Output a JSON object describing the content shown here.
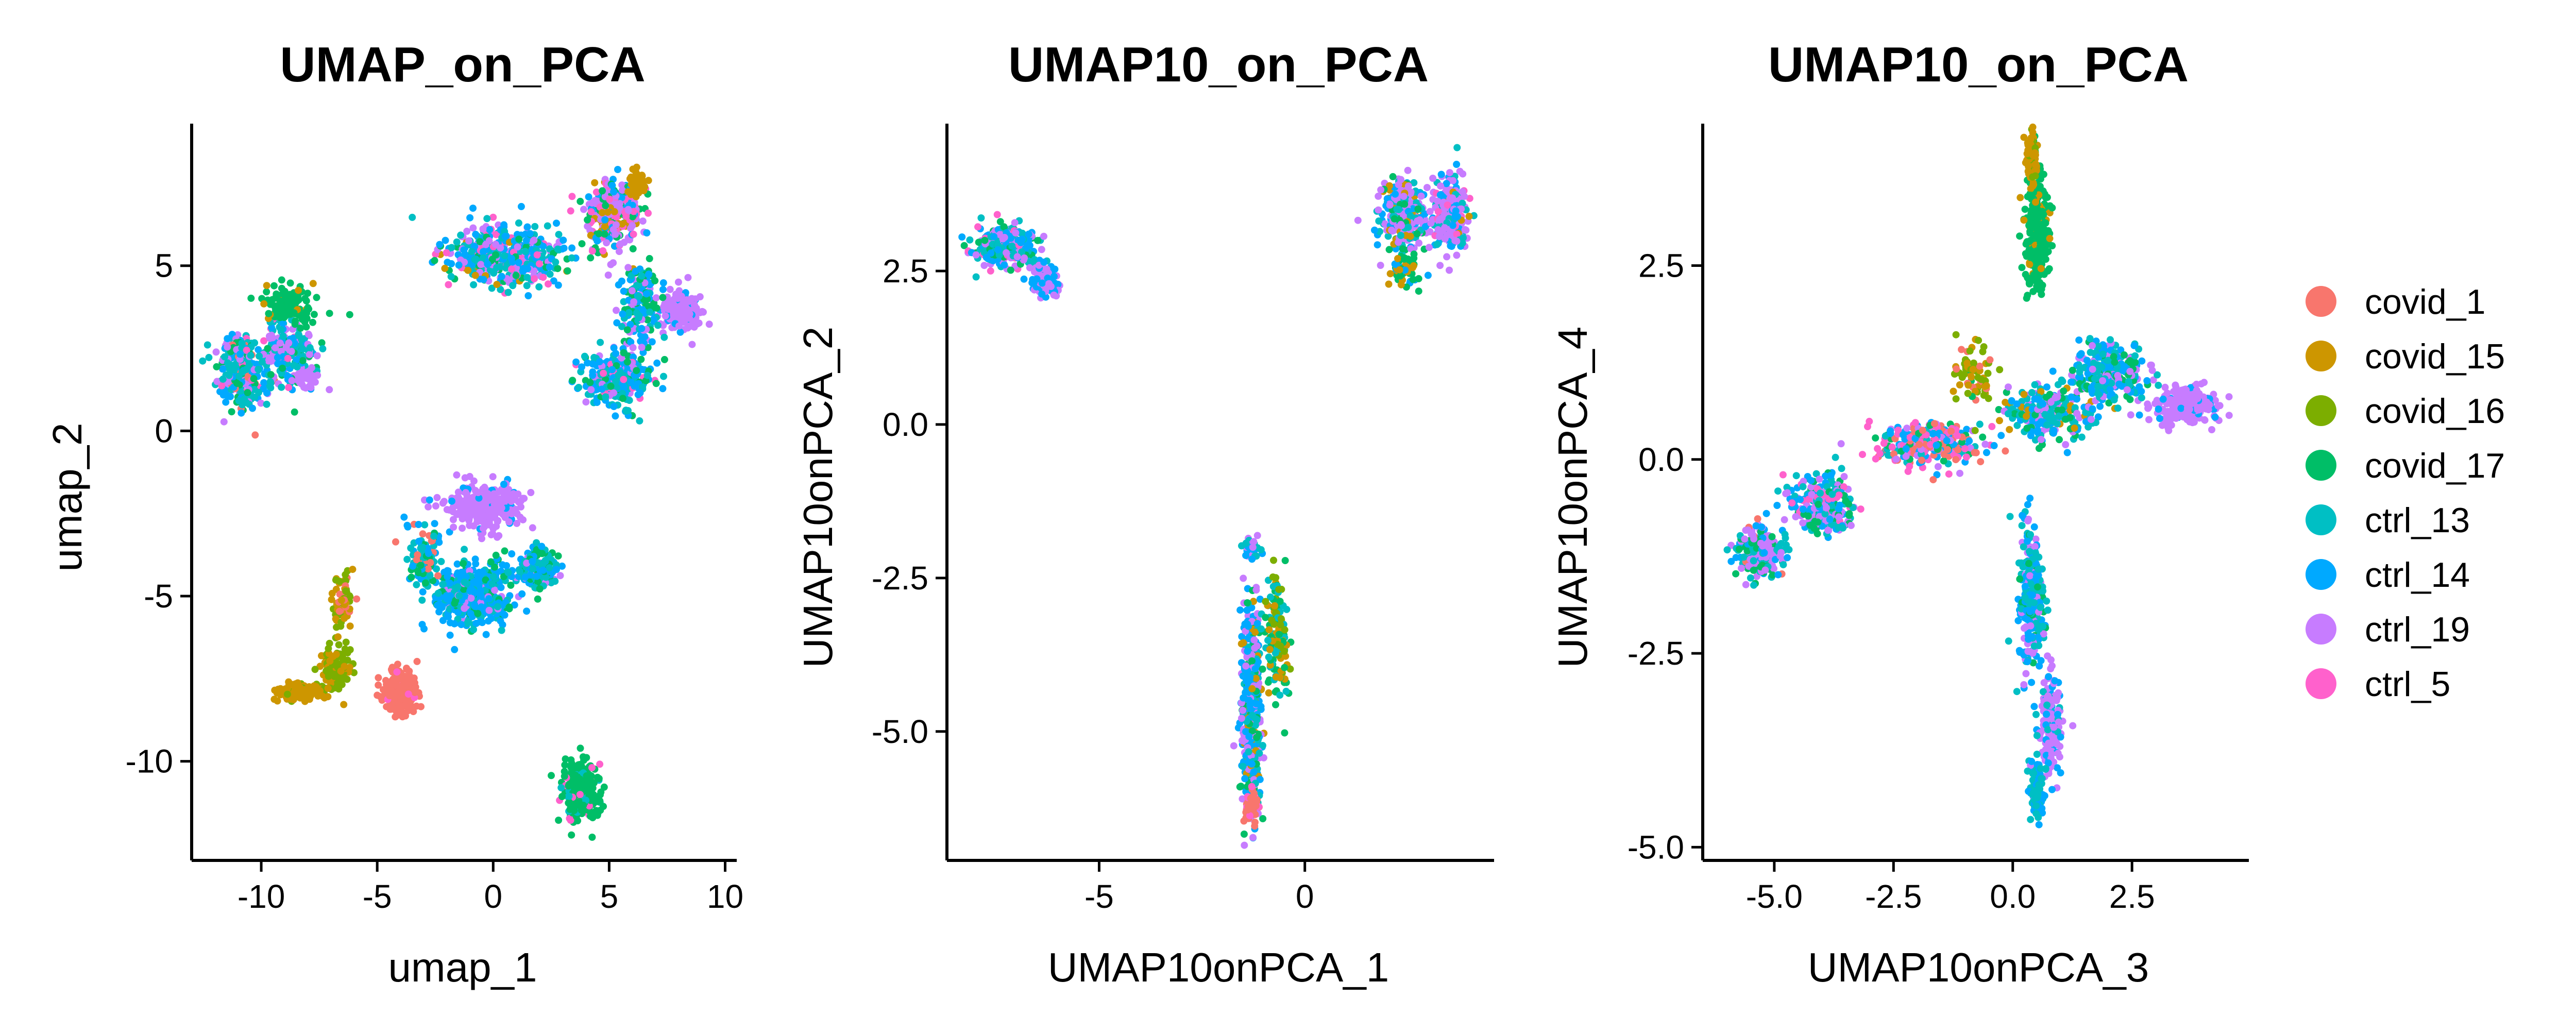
{
  "legend": {
    "items": [
      "covid_1",
      "covid_15",
      "covid_16",
      "covid_17",
      "ctrl_13",
      "ctrl_14",
      "ctrl_19",
      "ctrl_5"
    ],
    "colors": [
      "#F8766D",
      "#CD9600",
      "#7CAE00",
      "#00BE67",
      "#00BFC4",
      "#00A9FF",
      "#C77CFF",
      "#FF61CC"
    ]
  },
  "chart_data": [
    {
      "type": "scatter",
      "title": "UMAP_on_PCA",
      "xlabel": "umap_1",
      "ylabel": "umap_2",
      "xlim": [
        -13,
        10.5
      ],
      "ylim": [
        -13,
        9.3
      ],
      "xticks": [
        -10,
        -5,
        0,
        5,
        10
      ],
      "yticks": [
        -10,
        -5,
        0,
        5
      ],
      "xtick_labels": [
        "-10",
        "-5",
        "0",
        "5",
        "10"
      ],
      "ytick_labels": [
        "-10",
        "-5",
        "0",
        "5"
      ],
      "grid": false,
      "clusters": [
        {
          "cx": -10.9,
          "cy": 1.8,
          "sx": 0.9,
          "sy": 1.0,
          "n": 260,
          "mix": [
            [
              "ctrl_13",
              0.3
            ],
            [
              "ctrl_14",
              0.2
            ],
            [
              "ctrl_19",
              0.2
            ],
            [
              "covid_17",
              0.15
            ],
            [
              "covid_1",
              0.1
            ],
            [
              "ctrl_5",
              0.05
            ]
          ]
        },
        {
          "cx": -9.0,
          "cy": 2.4,
          "sx": 1.2,
          "sy": 1.0,
          "n": 220,
          "mix": [
            [
              "ctrl_13",
              0.3
            ],
            [
              "ctrl_19",
              0.25
            ],
            [
              "ctrl_14",
              0.2
            ],
            [
              "covid_17",
              0.15
            ],
            [
              "ctrl_5",
              0.1
            ]
          ]
        },
        {
          "cx": -8.8,
          "cy": 3.8,
          "sx": 1.0,
          "sy": 0.5,
          "n": 130,
          "mix": [
            [
              "covid_17",
              0.85
            ],
            [
              "covid_15",
              0.15
            ]
          ]
        },
        {
          "cx": -8.0,
          "cy": 1.6,
          "sx": 0.4,
          "sy": 0.3,
          "n": 40,
          "mix": [
            [
              "ctrl_19",
              1.0
            ]
          ]
        },
        {
          "cx": 0.5,
          "cy": 5.3,
          "sx": 2.3,
          "sy": 0.8,
          "n": 480,
          "mix": [
            [
              "ctrl_14",
              0.3
            ],
            [
              "ctrl_13",
              0.25
            ],
            [
              "ctrl_19",
              0.2
            ],
            [
              "covid_17",
              0.1
            ],
            [
              "ctrl_5",
              0.1
            ],
            [
              "covid_15",
              0.05
            ]
          ]
        },
        {
          "cx": 5.2,
          "cy": 6.5,
          "sx": 1.1,
          "sy": 1.0,
          "n": 300,
          "mix": [
            [
              "ctrl_19",
              0.3
            ],
            [
              "ctrl_5",
              0.2
            ],
            [
              "ctrl_14",
              0.2
            ],
            [
              "covid_17",
              0.15
            ],
            [
              "covid_15",
              0.15
            ]
          ]
        },
        {
          "cx": 6.2,
          "cy": 7.5,
          "sx": 0.3,
          "sy": 0.3,
          "n": 50,
          "mix": [
            [
              "covid_15",
              1.0
            ]
          ]
        },
        {
          "cx": 8.1,
          "cy": 3.6,
          "sx": 0.7,
          "sy": 0.5,
          "n": 240,
          "mix": [
            [
              "ctrl_19",
              0.9
            ],
            [
              "ctrl_14",
              0.1
            ]
          ]
        },
        {
          "cx": 6.3,
          "cy": 3.8,
          "sx": 0.8,
          "sy": 1.3,
          "n": 160,
          "mix": [
            [
              "ctrl_14",
              0.3
            ],
            [
              "covid_17",
              0.3
            ],
            [
              "ctrl_13",
              0.25
            ],
            [
              "ctrl_19",
              0.15
            ]
          ]
        },
        {
          "cx": 5.3,
          "cy": 1.6,
          "sx": 1.3,
          "sy": 0.8,
          "n": 300,
          "mix": [
            [
              "ctrl_14",
              0.35
            ],
            [
              "ctrl_13",
              0.25
            ],
            [
              "covid_17",
              0.2
            ],
            [
              "ctrl_19",
              0.1
            ],
            [
              "ctrl_5",
              0.1
            ]
          ]
        },
        {
          "cx": -0.3,
          "cy": -2.3,
          "sx": 1.4,
          "sy": 0.6,
          "n": 260,
          "mix": [
            [
              "ctrl_19",
              0.9
            ],
            [
              "ctrl_14",
              0.1
            ]
          ]
        },
        {
          "cx": -0.8,
          "cy": -5.0,
          "sx": 1.5,
          "sy": 0.9,
          "n": 420,
          "mix": [
            [
              "ctrl_14",
              0.6
            ],
            [
              "ctrl_13",
              0.2
            ],
            [
              "covid_17",
              0.1
            ],
            [
              "ctrl_19",
              0.1
            ]
          ]
        },
        {
          "cx": 1.9,
          "cy": -4.2,
          "sx": 0.8,
          "sy": 0.5,
          "n": 160,
          "mix": [
            [
              "ctrl_14",
              0.4
            ],
            [
              "ctrl_13",
              0.3
            ],
            [
              "covid_17",
              0.2
            ],
            [
              "ctrl_19",
              0.1
            ]
          ]
        },
        {
          "cx": -3.0,
          "cy": -3.8,
          "sx": 0.7,
          "sy": 1.0,
          "n": 110,
          "mix": [
            [
              "ctrl_13",
              0.3
            ],
            [
              "ctrl_14",
              0.3
            ],
            [
              "covid_17",
              0.2
            ],
            [
              "covid_1",
              0.2
            ]
          ]
        },
        {
          "cx": -4.0,
          "cy": -7.9,
          "sx": 0.6,
          "sy": 0.55,
          "n": 260,
          "mix": [
            [
              "covid_1",
              0.95
            ],
            [
              "ctrl_5",
              0.05
            ]
          ]
        },
        {
          "cx": -6.8,
          "cy": -7.2,
          "sx": 0.55,
          "sy": 0.6,
          "n": 130,
          "mix": [
            [
              "covid_16",
              0.7
            ],
            [
              "covid_15",
              0.3
            ]
          ]
        },
        {
          "cx": -8.3,
          "cy": -7.9,
          "sx": 0.9,
          "sy": 0.25,
          "n": 140,
          "mix": [
            [
              "covid_15",
              0.85
            ],
            [
              "covid_16",
              0.15
            ]
          ]
        },
        {
          "cx": -6.5,
          "cy": -5.3,
          "sx": 0.4,
          "sy": 0.8,
          "n": 60,
          "mix": [
            [
              "covid_16",
              0.5
            ],
            [
              "covid_15",
              0.3
            ],
            [
              "covid_1",
              0.2
            ]
          ]
        },
        {
          "cx": 3.8,
          "cy": -10.9,
          "sx": 0.7,
          "sy": 0.8,
          "n": 280,
          "mix": [
            [
              "covid_17",
              0.85
            ],
            [
              "ctrl_13",
              0.1
            ],
            [
              "ctrl_5",
              0.05
            ]
          ]
        }
      ]
    },
    {
      "type": "scatter",
      "title": "UMAP10_on_PCA",
      "xlabel": "UMAP10onPCA_1",
      "ylabel": "UMAP10onPCA_2",
      "xlim": [
        -8.7,
        4.6
      ],
      "ylim": [
        -7.1,
        4.9
      ],
      "xticks": [
        -5,
        0
      ],
      "yticks": [
        -5,
        -2.5,
        0,
        2.5
      ],
      "xtick_labels": [
        "-5",
        "0"
      ],
      "ytick_labels": [
        "-5.0",
        "-2.5",
        "0.0",
        "2.5"
      ],
      "grid": false,
      "clusters": [
        {
          "cx": -7.3,
          "cy": 2.9,
          "sx": 0.7,
          "sy": 0.3,
          "n": 340,
          "mix": [
            [
              "ctrl_13",
              0.3
            ],
            [
              "ctrl_14",
              0.25
            ],
            [
              "ctrl_19",
              0.2
            ],
            [
              "covid_17",
              0.15
            ],
            [
              "ctrl_5",
              0.1
            ]
          ]
        },
        {
          "cx": -6.3,
          "cy": 2.3,
          "sx": 0.3,
          "sy": 0.25,
          "n": 90,
          "mix": [
            [
              "ctrl_19",
              0.6
            ],
            [
              "ctrl_14",
              0.4
            ]
          ]
        },
        {
          "cx": 2.4,
          "cy": 3.4,
          "sx": 0.55,
          "sy": 0.5,
          "n": 280,
          "mix": [
            [
              "ctrl_19",
              0.4
            ],
            [
              "ctrl_14",
              0.2
            ],
            [
              "ctrl_13",
              0.2
            ],
            [
              "covid_15",
              0.1
            ],
            [
              "covid_17",
              0.1
            ]
          ]
        },
        {
          "cx": 3.5,
          "cy": 3.4,
          "sx": 0.4,
          "sy": 0.55,
          "n": 240,
          "mix": [
            [
              "ctrl_19",
              0.5
            ],
            [
              "ctrl_14",
              0.2
            ],
            [
              "ctrl_13",
              0.15
            ],
            [
              "ctrl_5",
              0.1
            ],
            [
              "covid_15",
              0.05
            ]
          ]
        },
        {
          "cx": 2.4,
          "cy": 2.5,
          "sx": 0.3,
          "sy": 0.3,
          "n": 60,
          "mix": [
            [
              "covid_17",
              0.4
            ],
            [
              "covid_15",
              0.3
            ],
            [
              "ctrl_14",
              0.3
            ]
          ]
        },
        {
          "cx": -1.3,
          "cy": -4.6,
          "sx": 0.22,
          "sy": 1.4,
          "n": 460,
          "mix": [
            [
              "ctrl_14",
              0.35
            ],
            [
              "ctrl_19",
              0.3
            ],
            [
              "ctrl_13",
              0.15
            ],
            [
              "covid_17",
              0.1
            ],
            [
              "covid_15",
              0.1
            ]
          ]
        },
        {
          "cx": -1.3,
          "cy": -6.2,
          "sx": 0.15,
          "sy": 0.25,
          "n": 70,
          "mix": [
            [
              "covid_1",
              0.8
            ],
            [
              "ctrl_5",
              0.2
            ]
          ]
        },
        {
          "cx": -1.3,
          "cy": -2.0,
          "sx": 0.15,
          "sy": 0.15,
          "n": 40,
          "mix": [
            [
              "ctrl_13",
              0.4
            ],
            [
              "ctrl_14",
              0.3
            ],
            [
              "ctrl_19",
              0.3
            ]
          ]
        },
        {
          "cx": -0.7,
          "cy": -3.6,
          "sx": 0.25,
          "sy": 1.0,
          "n": 130,
          "mix": [
            [
              "covid_17",
              0.4
            ],
            [
              "covid_16",
              0.2
            ],
            [
              "covid_15",
              0.2
            ],
            [
              "ctrl_13",
              0.2
            ]
          ]
        }
      ]
    },
    {
      "type": "scatter",
      "title": "UMAP10_on_PCA",
      "xlabel": "UMAP10onPCA_3",
      "ylabel": "UMAP10onPCA_4",
      "xlim": [
        -6.5,
        4.95
      ],
      "ylim": [
        -5.17,
        4.33
      ],
      "xticks": [
        -5,
        -2.5,
        0,
        2.5
      ],
      "yticks": [
        -5,
        -2.5,
        0,
        2.5
      ],
      "xtick_labels": [
        "-5.0",
        "-2.5",
        "0.0",
        "2.5"
      ],
      "ytick_labels": [
        "-5.0",
        "-2.5",
        "0.0",
        "2.5"
      ],
      "grid": false,
      "clusters": [
        {
          "cx": -5.3,
          "cy": -1.2,
          "sx": 0.5,
          "sy": 0.3,
          "n": 200,
          "mix": [
            [
              "ctrl_19",
              0.4
            ],
            [
              "ctrl_13",
              0.2
            ],
            [
              "ctrl_14",
              0.15
            ],
            [
              "covid_17",
              0.15
            ],
            [
              "covid_1",
              0.1
            ]
          ]
        },
        {
          "cx": -4.0,
          "cy": -0.6,
          "sx": 0.6,
          "sy": 0.35,
          "n": 250,
          "mix": [
            [
              "ctrl_19",
              0.3
            ],
            [
              "ctrl_13",
              0.25
            ],
            [
              "ctrl_14",
              0.2
            ],
            [
              "covid_17",
              0.15
            ],
            [
              "ctrl_5",
              0.1
            ]
          ]
        },
        {
          "cx": -1.7,
          "cy": 0.2,
          "sx": 1.0,
          "sy": 0.25,
          "n": 280,
          "mix": [
            [
              "ctrl_14",
              0.25
            ],
            [
              "ctrl_19",
              0.2
            ],
            [
              "ctrl_5",
              0.2
            ],
            [
              "covid_1",
              0.15
            ],
            [
              "ctrl_13",
              0.1
            ],
            [
              "covid_17",
              0.1
            ]
          ]
        },
        {
          "cx": 0.7,
          "cy": 0.6,
          "sx": 0.8,
          "sy": 0.3,
          "n": 240,
          "mix": [
            [
              "ctrl_13",
              0.3
            ],
            [
              "ctrl_14",
              0.25
            ],
            [
              "ctrl_19",
              0.2
            ],
            [
              "covid_17",
              0.15
            ],
            [
              "covid_15",
              0.1
            ]
          ]
        },
        {
          "cx": 2.0,
          "cy": 1.1,
          "sx": 0.7,
          "sy": 0.35,
          "n": 300,
          "mix": [
            [
              "ctrl_14",
              0.35
            ],
            [
              "ctrl_13",
              0.3
            ],
            [
              "ctrl_19",
              0.2
            ],
            [
              "covid_17",
              0.15
            ]
          ]
        },
        {
          "cx": 3.6,
          "cy": 0.7,
          "sx": 0.6,
          "sy": 0.22,
          "n": 240,
          "mix": [
            [
              "ctrl_19",
              0.9
            ],
            [
              "ctrl_14",
              0.1
            ]
          ]
        },
        {
          "cx": 0.5,
          "cy": 2.9,
          "sx": 0.22,
          "sy": 0.6,
          "n": 300,
          "mix": [
            [
              "covid_17",
              0.9
            ],
            [
              "covid_15",
              0.1
            ]
          ]
        },
        {
          "cx": 0.4,
          "cy": 3.9,
          "sx": 0.12,
          "sy": 0.35,
          "n": 90,
          "mix": [
            [
              "covid_15",
              0.7
            ],
            [
              "covid_16",
              0.2
            ],
            [
              "covid_17",
              0.1
            ]
          ]
        },
        {
          "cx": -0.8,
          "cy": 1.1,
          "sx": 0.4,
          "sy": 0.4,
          "n": 70,
          "mix": [
            [
              "covid_16",
              0.4
            ],
            [
              "covid_15",
              0.3
            ],
            [
              "covid_1",
              0.2
            ],
            [
              "covid_17",
              0.1
            ]
          ]
        },
        {
          "cx": 0.4,
          "cy": -1.8,
          "sx": 0.25,
          "sy": 0.9,
          "n": 240,
          "mix": [
            [
              "ctrl_14",
              0.45
            ],
            [
              "ctrl_13",
              0.3
            ],
            [
              "ctrl_19",
              0.15
            ],
            [
              "covid_17",
              0.1
            ]
          ]
        },
        {
          "cx": 0.8,
          "cy": -3.4,
          "sx": 0.2,
          "sy": 0.6,
          "n": 150,
          "mix": [
            [
              "ctrl_19",
              0.7
            ],
            [
              "ctrl_14",
              0.2
            ],
            [
              "ctrl_13",
              0.1
            ]
          ]
        },
        {
          "cx": 0.5,
          "cy": -4.2,
          "sx": 0.15,
          "sy": 0.4,
          "n": 90,
          "mix": [
            [
              "ctrl_13",
              0.5
            ],
            [
              "ctrl_14",
              0.4
            ],
            [
              "ctrl_19",
              0.1
            ]
          ]
        }
      ]
    }
  ]
}
